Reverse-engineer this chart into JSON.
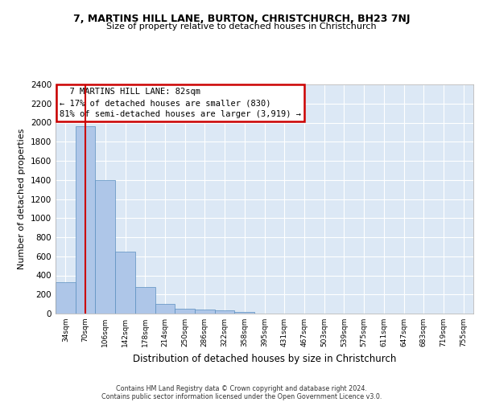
{
  "title_line1": "7, MARTINS HILL LANE, BURTON, CHRISTCHURCH, BH23 7NJ",
  "title_line2": "Size of property relative to detached houses in Christchurch",
  "xlabel": "Distribution of detached houses by size in Christchurch",
  "ylabel": "Number of detached properties",
  "footer_line1": "Contains HM Land Registry data © Crown copyright and database right 2024.",
  "footer_line2": "Contains public sector information licensed under the Open Government Licence v3.0.",
  "bin_labels": [
    "34sqm",
    "70sqm",
    "106sqm",
    "142sqm",
    "178sqm",
    "214sqm",
    "250sqm",
    "286sqm",
    "322sqm",
    "358sqm",
    "395sqm",
    "431sqm",
    "467sqm",
    "503sqm",
    "539sqm",
    "575sqm",
    "611sqm",
    "647sqm",
    "683sqm",
    "719sqm",
    "755sqm"
  ],
  "bar_values": [
    325,
    1960,
    1400,
    650,
    280,
    105,
    50,
    45,
    35,
    20,
    0,
    0,
    0,
    0,
    0,
    0,
    0,
    0,
    0,
    0,
    0
  ],
  "bar_color": "#aec6e8",
  "bar_edge_color": "#5a8fc0",
  "background_color": "#dce8f5",
  "grid_color": "#ffffff",
  "annotation_text": "  7 MARTINS HILL LANE: 82sqm\n← 17% of detached houses are smaller (830)\n81% of semi-detached houses are larger (3,919) →",
  "annotation_box_color": "#ffffff",
  "annotation_box_edge_color": "#cc0000",
  "red_line_x": 1,
  "ylim": [
    0,
    2400
  ],
  "yticks": [
    0,
    200,
    400,
    600,
    800,
    1000,
    1200,
    1400,
    1600,
    1800,
    2000,
    2200,
    2400
  ]
}
